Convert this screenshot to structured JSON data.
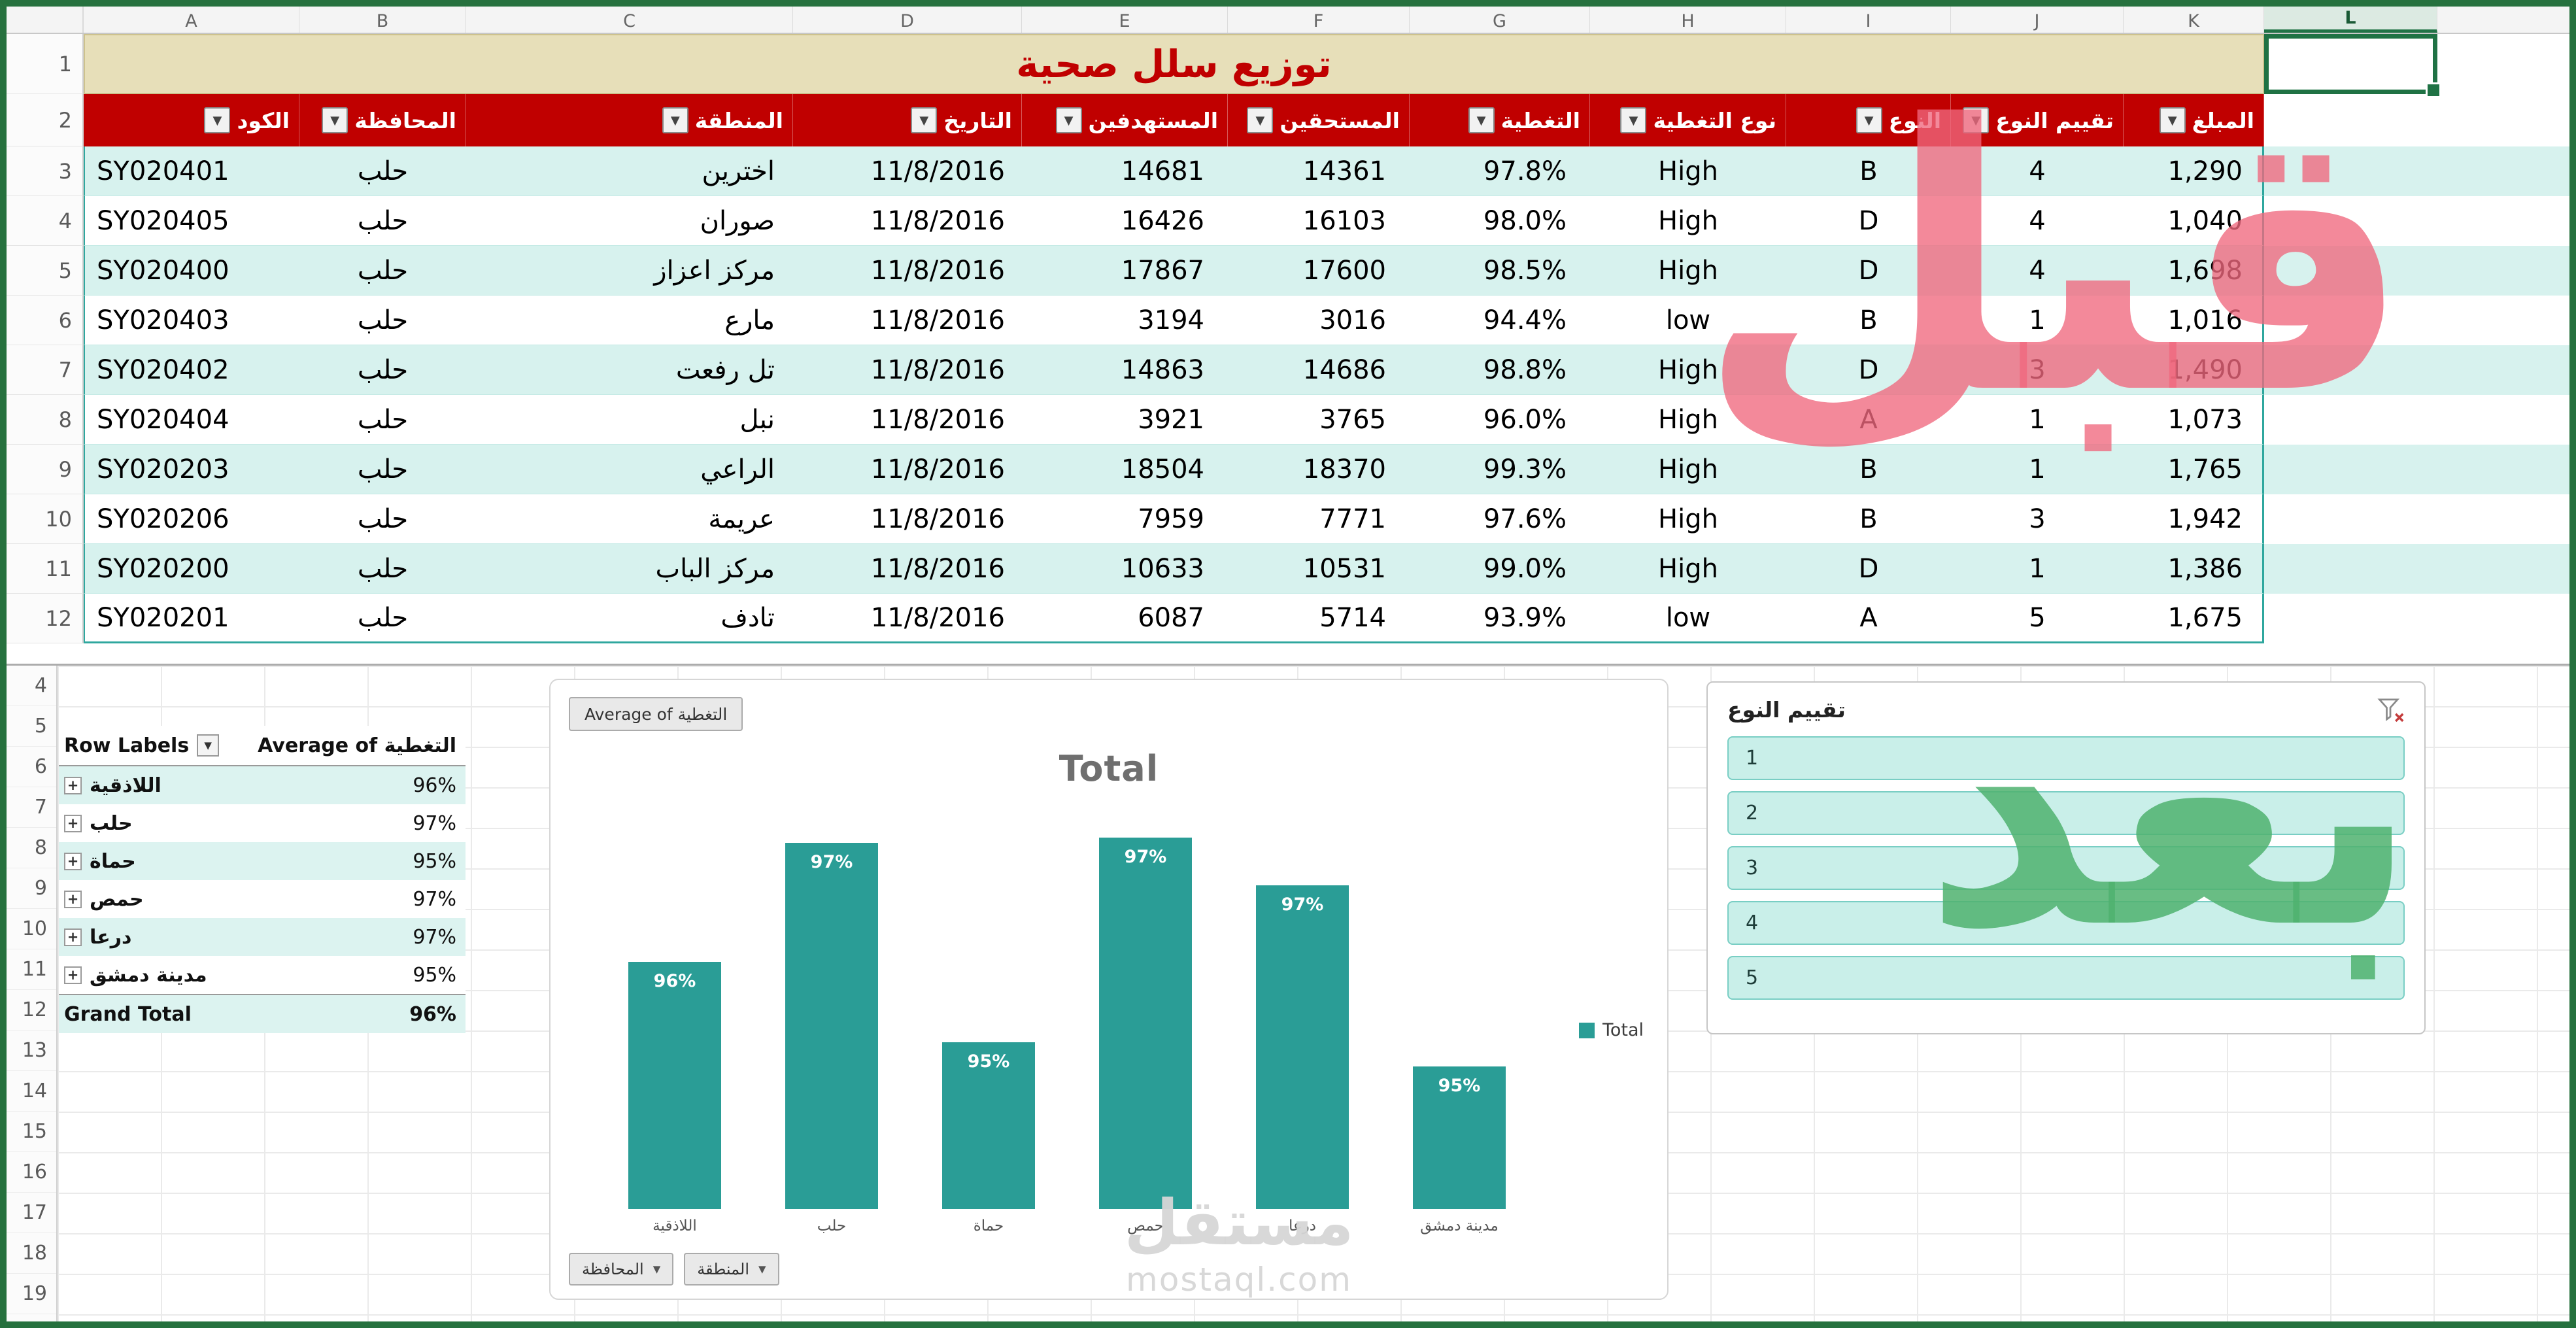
{
  "sheet": {
    "column_letters": [
      "A",
      "B",
      "C",
      "D",
      "E",
      "F",
      "G",
      "H",
      "I",
      "J",
      "K",
      "L"
    ],
    "title_row_number": "1",
    "header_row_number": "2",
    "bottom_row_numbers": [
      "4",
      "5",
      "6",
      "7",
      "8",
      "9",
      "10",
      "11",
      "12",
      "13",
      "14",
      "15",
      "16",
      "17",
      "18",
      "19"
    ]
  },
  "table": {
    "title": "توزيع سلل صحية",
    "headers": [
      "الكود",
      "المحافظة",
      "المنطقة",
      "التاريخ",
      "المستهدفين",
      "المستحقين",
      "التغطية",
      "نوع التغطية",
      "النوع",
      "تقييم النوع",
      "المبلغ"
    ],
    "rows": [
      {
        "n": "3",
        "cells": [
          "SY020401",
          "حلب",
          "اخترين",
          "11/8/2016",
          "14681",
          "14361",
          "97.8%",
          "High",
          "B",
          "4",
          "1,290"
        ]
      },
      {
        "n": "4",
        "cells": [
          "SY020405",
          "حلب",
          "صوران",
          "11/8/2016",
          "16426",
          "16103",
          "98.0%",
          "High",
          "D",
          "4",
          "1,040"
        ]
      },
      {
        "n": "5",
        "cells": [
          "SY020400",
          "حلب",
          "مركز اعزاز",
          "11/8/2016",
          "17867",
          "17600",
          "98.5%",
          "High",
          "D",
          "4",
          "1,698"
        ]
      },
      {
        "n": "6",
        "cells": [
          "SY020403",
          "حلب",
          "مارع",
          "11/8/2016",
          "3194",
          "3016",
          "94.4%",
          "low",
          "B",
          "1",
          "1,016"
        ]
      },
      {
        "n": "7",
        "cells": [
          "SY020402",
          "حلب",
          "تل رفعت",
          "11/8/2016",
          "14863",
          "14686",
          "98.8%",
          "High",
          "D",
          "3",
          "1,490"
        ]
      },
      {
        "n": "8",
        "cells": [
          "SY020404",
          "حلب",
          "نبل",
          "11/8/2016",
          "3921",
          "3765",
          "96.0%",
          "High",
          "A",
          "1",
          "1,073"
        ]
      },
      {
        "n": "9",
        "cells": [
          "SY020203",
          "حلب",
          "الراعي",
          "11/8/2016",
          "18504",
          "18370",
          "99.3%",
          "High",
          "B",
          "1",
          "1,765"
        ]
      },
      {
        "n": "10",
        "cells": [
          "SY020206",
          "حلب",
          "عريمة",
          "11/8/2016",
          "7959",
          "7771",
          "97.6%",
          "High",
          "B",
          "3",
          "1,942"
        ]
      },
      {
        "n": "11",
        "cells": [
          "SY020200",
          "حلب",
          "مركز الباب",
          "11/8/2016",
          "10633",
          "10531",
          "99.0%",
          "High",
          "D",
          "1",
          "1,386"
        ]
      },
      {
        "n": "12",
        "cells": [
          "SY020201",
          "حلب",
          "تادف",
          "11/8/2016",
          "6087",
          "5714",
          "93.9%",
          "low",
          "A",
          "5",
          "1,675"
        ]
      }
    ]
  },
  "pivot": {
    "header_label": "Row Labels",
    "header_value": "Average of التغطية",
    "rows": [
      {
        "label": "اللاذقية",
        "value": "96%"
      },
      {
        "label": "حلب",
        "value": "97%"
      },
      {
        "label": "حماة",
        "value": "95%"
      },
      {
        "label": "حمص",
        "value": "97%"
      },
      {
        "label": "درعا",
        "value": "97%"
      },
      {
        "label": "مدينة دمشق",
        "value": "95%"
      }
    ],
    "grand_total": {
      "label": "Grand Total",
      "value": "96%"
    }
  },
  "chart_data": {
    "type": "bar",
    "title": "Total",
    "field_button": "Average of التغطية",
    "categories": [
      "اللاذقية",
      "حلب",
      "حماة",
      "حمص",
      "درعا",
      "مدينة دمشق"
    ],
    "values": [
      96.0,
      97.25,
      95.15,
      97.3,
      96.8,
      94.9
    ],
    "labels": [
      "96%",
      "97%",
      "95%",
      "97%",
      "97%",
      "95%"
    ],
    "ylim": [
      93.4,
      97.35
    ],
    "grid": false,
    "legend": "Total",
    "legend_position": "right",
    "axis_field_buttons": [
      "المحافظة",
      "المنطقة"
    ]
  },
  "slicer": {
    "title": "تقييم النوع",
    "items": [
      "1",
      "2",
      "3",
      "4",
      "5"
    ]
  },
  "watermarks": {
    "before_label": "قبل",
    "after_label": "بعد",
    "brand_arabic": "مستقل",
    "brand_domain": "mostaql.com"
  },
  "colors": {
    "header_red": "#C00000",
    "title_beige": "#E7DFB9",
    "band_teal": "#D7F2EE",
    "bar_teal": "#2A9D96",
    "slicer_fill": "#C9EFE9",
    "excel_green": "#217346",
    "before_pink": "#F0687D",
    "after_green": "#4FB26F"
  }
}
